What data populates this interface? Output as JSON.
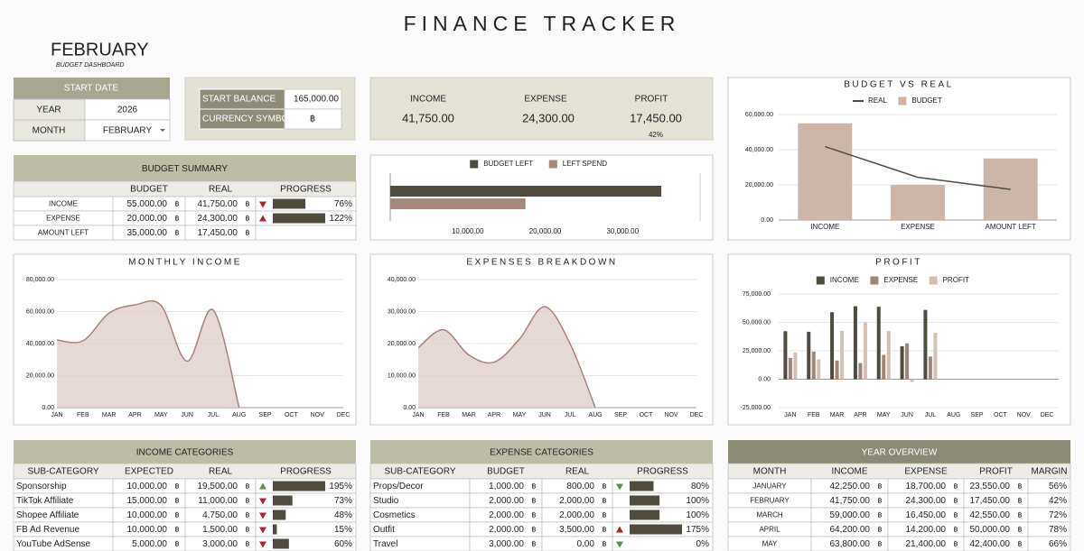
{
  "title": "FINANCE TRACKER",
  "header": {
    "month": "FEBRUARY",
    "subtitle": "BUDGET DASHBOARD"
  },
  "start_date": {
    "title": "START DATE",
    "rows": [
      [
        "YEAR",
        "2026"
      ],
      [
        "MONTH",
        "FEBRUARY"
      ]
    ]
  },
  "balance": {
    "rows": [
      [
        "START BALANCE",
        "165,000.00"
      ],
      [
        "CURRENCY SYMBOL",
        "฿"
      ]
    ]
  },
  "kpis": [
    {
      "label": "INCOME",
      "value": "41,750.00"
    },
    {
      "label": "EXPENSE",
      "value": "24,300.00"
    },
    {
      "label": "PROFIT",
      "value": "17,450.00",
      "note": "42%"
    }
  ],
  "budget_summary": {
    "title": "BUDGET SUMMARY",
    "columns": [
      "BUDGET",
      "REAL",
      "PROGRESS"
    ],
    "rows": [
      {
        "cells": [
          "INCOME",
          "55,000.00",
          "41,750.00"
        ],
        "trend": "down",
        "trend_color": "#a8262b",
        "progress": 76,
        "progress_label": "76%"
      },
      {
        "cells": [
          "EXPENSE",
          "20,000.00",
          "24,300.00"
        ],
        "trend": "up",
        "trend_color": "#a8262b",
        "progress": 122,
        "progress_label": "122%"
      },
      {
        "cells": [
          "AMOUNT LEFT",
          "35,000.00",
          "17,450.00"
        ]
      }
    ]
  },
  "income_categories": {
    "title": "INCOME CATEGORIES",
    "columns": [
      "SUB-CATEGORY",
      "EXPECTED",
      "REAL",
      "PROGRESS"
    ],
    "rows": [
      {
        "cells": [
          "Sponsorship",
          "10,000.00",
          "19,500.00"
        ],
        "trend": "up",
        "trend_color": "#4f9a45",
        "progress": 195,
        "progress_label": "195%"
      },
      {
        "cells": [
          "TikTok Affiliate",
          "15,000.00",
          "11,000.00"
        ],
        "trend": "down",
        "trend_color": "#a8262b",
        "progress": 73,
        "progress_label": "73%"
      },
      {
        "cells": [
          "Shopee Affiliate",
          "10,000.00",
          "4,750.00"
        ],
        "trend": "down",
        "trend_color": "#a8262b",
        "progress": 48,
        "progress_label": "48%"
      },
      {
        "cells": [
          "FB Ad Revenue",
          "10,000.00",
          "1,500.00"
        ],
        "trend": "down",
        "trend_color": "#a8262b",
        "progress": 15,
        "progress_label": "15%"
      },
      {
        "cells": [
          "YouTube AdSense",
          "5,000.00",
          "3,000.00"
        ],
        "trend": "down",
        "trend_color": "#a8262b",
        "progress": 60,
        "progress_label": "60%"
      }
    ]
  },
  "expense_categories": {
    "title": "EXPENSE CATEGORIES",
    "columns": [
      "SUB-CATEGORY",
      "BUDGET",
      "REAL",
      "PROGRESS"
    ],
    "rows": [
      {
        "cells": [
          "Props/Decor",
          "1,000.00",
          "800.00"
        ],
        "trend": "down",
        "trend_color": "#4f9a45",
        "progress": 80,
        "progress_label": "80%"
      },
      {
        "cells": [
          "Studio",
          "2,000.00",
          "2,000.00"
        ],
        "progress": 100,
        "progress_label": "100%"
      },
      {
        "cells": [
          "Cosmetics",
          "2,000.00",
          "2,000.00"
        ],
        "progress": 100,
        "progress_label": "100%"
      },
      {
        "cells": [
          "Outfit",
          "2,000.00",
          "3,500.00"
        ],
        "trend": "up",
        "trend_color": "#a8262b",
        "progress": 175,
        "progress_label": "175%"
      },
      {
        "cells": [
          "Travel",
          "3,000.00",
          "0.00"
        ],
        "trend": "down",
        "trend_color": "#4f9a45",
        "progress": 0,
        "progress_label": "0%"
      }
    ]
  },
  "year_overview": {
    "title": "YEAR OVERVIEW",
    "columns": [
      "MONTH",
      "INCOME",
      "EXPENSE",
      "PROFIT",
      "MARGIN"
    ],
    "rows": [
      {
        "cells": [
          "JANUARY",
          "42,250.00",
          "18,700.00",
          "23,550.00",
          "56%"
        ]
      },
      {
        "cells": [
          "FEBRUARY",
          "41,750.00",
          "24,300.00",
          "17,450.00",
          "42%"
        ]
      },
      {
        "cells": [
          "MARCH",
          "59,000.00",
          "16,450.00",
          "42,550.00",
          "72%"
        ]
      },
      {
        "cells": [
          "APRIL",
          "64,200.00",
          "14,200.00",
          "50,000.00",
          "78%"
        ]
      },
      {
        "cells": [
          "MAY",
          "63,800.00",
          "21,400.00",
          "42,400.00",
          "66%"
        ]
      }
    ]
  },
  "chart_data": [
    {
      "type": "hbar",
      "series": [
        {
          "name": "BUDGET LEFT",
          "color": "#4f4c3f",
          "values": [
            35000
          ]
        },
        {
          "name": "LEFT SPEND",
          "color": "#a5877c",
          "values": [
            17450
          ]
        }
      ],
      "xlim": [
        0,
        40000
      ],
      "xticks": [
        {
          "value": 10000,
          "label": "10,000.00"
        },
        {
          "value": 20000,
          "label": "20,000.00"
        },
        {
          "value": 30000,
          "label": "30,000.00"
        }
      ],
      "grid": false
    },
    {
      "type": "bar_line",
      "title": "BUDGET VS REAL",
      "categories": [
        "INCOME",
        "EXPENSE",
        "AMOUNT LEFT"
      ],
      "series": [
        {
          "name": "REAL",
          "kind": "line",
          "color": "#514c40",
          "values": [
            41750,
            24300,
            17450
          ]
        },
        {
          "name": "BUDGET",
          "kind": "bar",
          "color": "#cdb6a8",
          "values": [
            55000,
            20000,
            35000
          ]
        }
      ],
      "ylim": [
        0,
        60000
      ],
      "yticks": [
        {
          "value": 0,
          "label": "0.00"
        },
        {
          "value": 20000,
          "label": "20,000.00"
        },
        {
          "value": 40000,
          "label": "40,000.00"
        },
        {
          "value": 60000,
          "label": "60,000.00"
        }
      ],
      "grid": true
    },
    {
      "type": "area",
      "title": "MONTHLY INCOME",
      "categories": [
        "JAN",
        "FEB",
        "MAR",
        "APR",
        "MAY",
        "JUN",
        "JUL",
        "AUG",
        "SEP",
        "OCT",
        "NOV",
        "DEC"
      ],
      "values": [
        42250,
        41750,
        59000,
        64200,
        63800,
        29000,
        61000,
        0,
        null,
        null,
        null,
        null
      ],
      "color": "#a7837a",
      "fill": "#ddd0cd",
      "ylim": [
        0,
        80000
      ],
      "yticks": [
        {
          "value": 0,
          "label": "0.00"
        },
        {
          "value": 20000,
          "label": "20,000.00"
        },
        {
          "value": 40000,
          "label": "40,000.00"
        },
        {
          "value": 60000,
          "label": "60,000.00"
        },
        {
          "value": 80000,
          "label": "80,000.00"
        }
      ],
      "grid": true
    },
    {
      "type": "area",
      "title": "EXPENSES BREAKDOWN",
      "categories": [
        "JAN",
        "FEB",
        "MAR",
        "APR",
        "MAY",
        "JUN",
        "JUL",
        "AUG",
        "SEP",
        "OCT",
        "NOV",
        "DEC"
      ],
      "values": [
        18700,
        24300,
        16450,
        14200,
        21400,
        31500,
        20000,
        0,
        null,
        null,
        null,
        null
      ],
      "color": "#a7837a",
      "fill": "#ddd0cd",
      "ylim": [
        0,
        40000
      ],
      "yticks": [
        {
          "value": 0,
          "label": "0.00"
        },
        {
          "value": 10000,
          "label": "10,000.00"
        },
        {
          "value": 20000,
          "label": "20,000.00"
        },
        {
          "value": 30000,
          "label": "30,000.00"
        },
        {
          "value": 40000,
          "label": "40,000.00"
        }
      ],
      "grid": true
    },
    {
      "type": "grouped_bar",
      "title": "PROFIT",
      "categories": [
        "JAN",
        "FEB",
        "MAR",
        "APR",
        "MAY",
        "JUN",
        "JUL",
        "AUG",
        "SEP",
        "OCT",
        "NOV",
        "DEC"
      ],
      "series": [
        {
          "name": "INCOME",
          "color": "#4f4c3f",
          "values": [
            42250,
            41750,
            59000,
            64200,
            63800,
            29000,
            61000,
            0,
            null,
            null,
            null,
            null
          ]
        },
        {
          "name": "EXPENSE",
          "color": "#a0857a",
          "values": [
            18700,
            24300,
            16450,
            14200,
            21400,
            31500,
            20000,
            0,
            null,
            null,
            null,
            null
          ]
        },
        {
          "name": "PROFIT",
          "color": "#d3bfb3",
          "values": [
            23550,
            17450,
            42550,
            50000,
            42400,
            -2500,
            41000,
            0,
            null,
            null,
            null,
            null
          ]
        }
      ],
      "ylim": [
        -25000,
        75000
      ],
      "yticks": [
        {
          "value": -25000,
          "label": "-25,000.00"
        },
        {
          "value": 0,
          "label": "0.00"
        },
        {
          "value": 25000,
          "label": "25,000.00"
        },
        {
          "value": 50000,
          "label": "50,000.00"
        },
        {
          "value": 75000,
          "label": "75,000.00"
        }
      ],
      "grid": true
    }
  ]
}
